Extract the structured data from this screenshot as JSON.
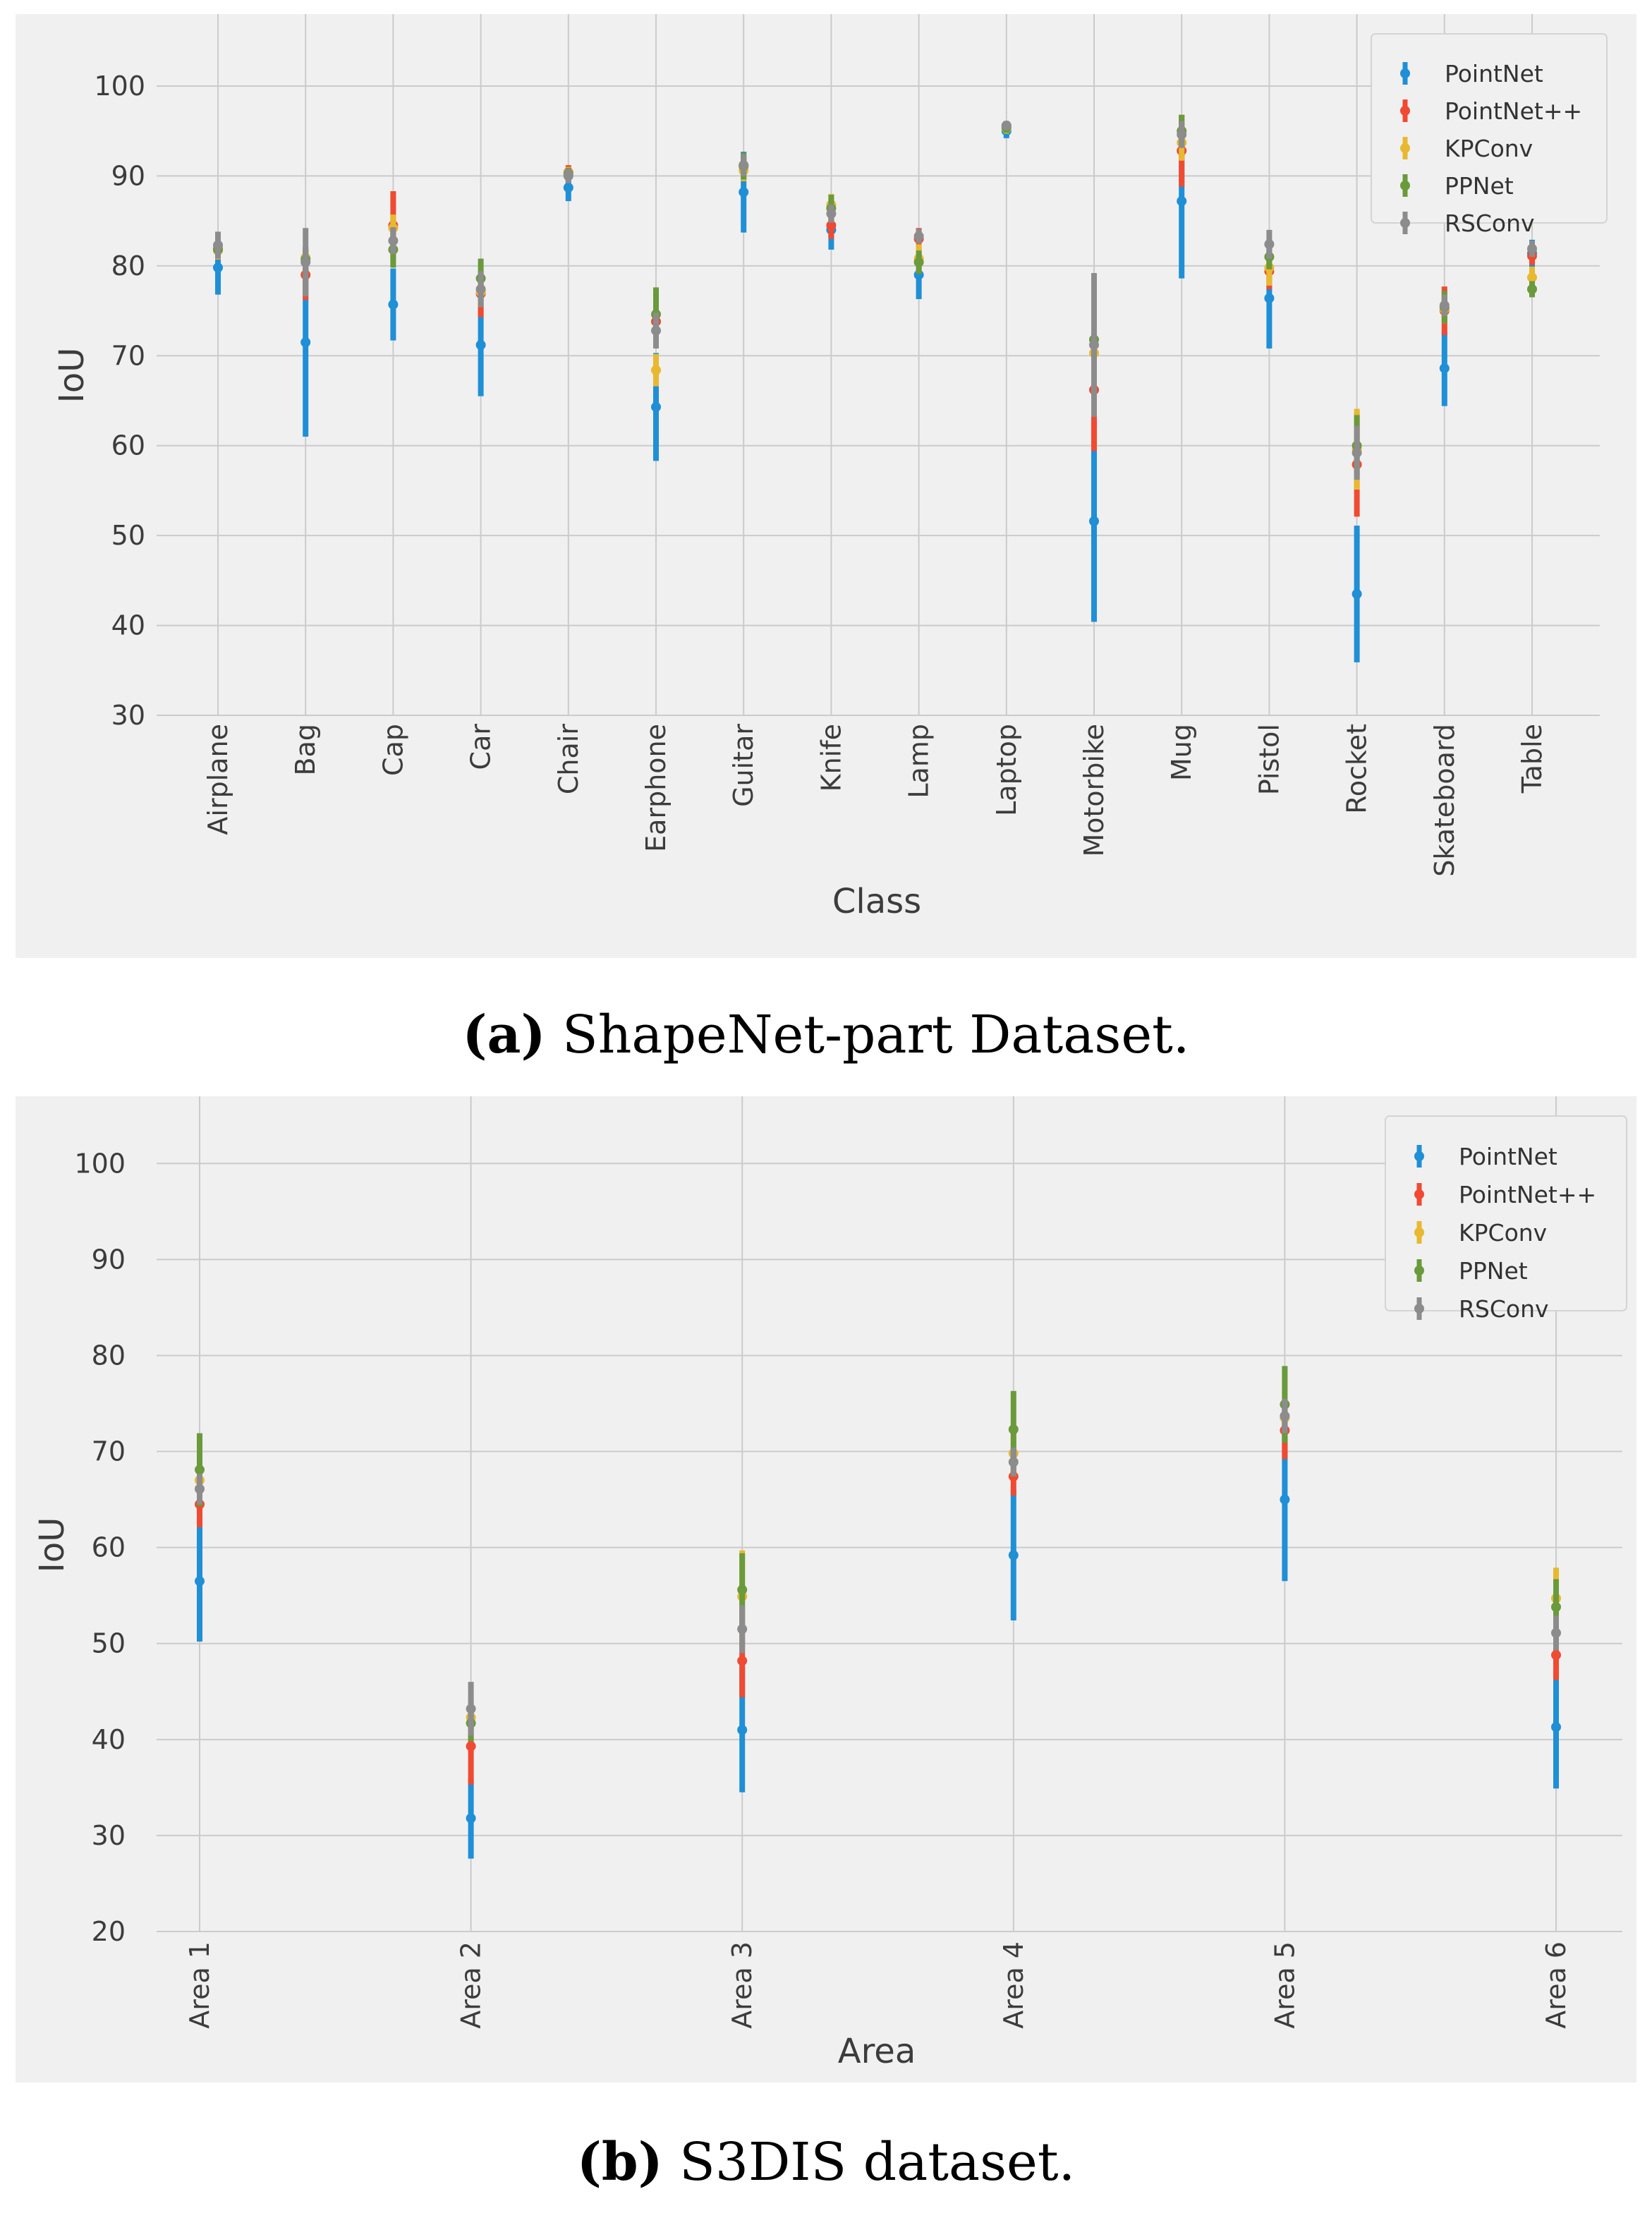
{
  "figure": {
    "captions": [
      {
        "letter": "(a)",
        "text": " ShapeNet-part Dataset."
      },
      {
        "letter": "(b)",
        "text": " S3DIS dataset."
      }
    ]
  },
  "colors": {
    "PointNet": "#1f8fd6",
    "PointNet++": "#f04a32",
    "KPConv": "#e8b830",
    "PPNet": "#6a9a3c",
    "RSConv": "#8c8c8c",
    "grid": "#cbcbcb",
    "background": "#f0f0f0"
  },
  "chart_data": [
    {
      "type": "errorbar",
      "title": "",
      "xlabel": "Class",
      "ylabel": "IoU",
      "ylim": [
        30,
        108
      ],
      "yticks": [
        30,
        40,
        50,
        60,
        70,
        80,
        90,
        100
      ],
      "legend_position": "top-right",
      "categories": [
        "Airplane",
        "Bag",
        "Cap",
        "Car",
        "Chair",
        "Earphone",
        "Guitar",
        "Knife",
        "Lamp",
        "Laptop",
        "Motorbike",
        "Mug",
        "Pistol",
        "Rocket",
        "Skateboard",
        "Table"
      ],
      "series": [
        {
          "name": "PointNet",
          "values": [
            79.8,
            71.5,
            75.7,
            71.2,
            88.7,
            64.3,
            88.2,
            84.0,
            79.0,
            95.0,
            51.6,
            87.2,
            76.4,
            43.5,
            68.6,
            81.4
          ],
          "errors": [
            3,
            10.5,
            4,
            5.7,
            1.5,
            6,
            4.5,
            2.2,
            2.7,
            0.8,
            11.2,
            8.6,
            5.6,
            7.6,
            4.2,
            1.5
          ]
        },
        {
          "name": "PointNet++",
          "values": [
            81.9,
            79.0,
            84.5,
            76.9,
            90.4,
            73.8,
            91.1,
            84.5,
            83.0,
            95.6,
            66.2,
            92.8,
            79.4,
            57.9,
            75.0,
            81.1
          ],
          "errors": [
            1.2,
            2.8,
            3.8,
            2.6,
            0.8,
            1.5,
            1.0,
            1.5,
            1.2,
            0.5,
            6.8,
            4.0,
            2.0,
            5.8,
            2.7,
            1.0
          ]
        },
        {
          "name": "KPConv",
          "values": [
            81.7,
            80.9,
            84.2,
            77.1,
            90.3,
            68.4,
            90.6,
            86.8,
            80.8,
            95.3,
            70.3,
            93.7,
            79.8,
            59.6,
            75.2,
            78.7
          ],
          "errors": [
            1.0,
            1.2,
            1.5,
            1.6,
            0.7,
            1.8,
            1.2,
            1.2,
            1.6,
            0.6,
            2.0,
            2.0,
            2.0,
            4.5,
            1.6,
            1.2
          ]
        },
        {
          "name": "PPNet",
          "values": [
            81.8,
            80.7,
            81.8,
            78.6,
            90.2,
            74.6,
            91.1,
            86.4,
            80.4,
            95.4,
            71.8,
            95.0,
            81.0,
            60.0,
            75.4,
            77.4
          ],
          "errors": [
            0.8,
            1.4,
            2.0,
            2.2,
            0.7,
            3.0,
            1.5,
            1.5,
            1.3,
            0.6,
            2.6,
            1.8,
            1.4,
            3.4,
            1.8,
            0.9
          ]
        },
        {
          "name": "RSConv",
          "values": [
            82.3,
            80.4,
            82.8,
            77.4,
            90.0,
            72.8,
            91.2,
            85.8,
            83.3,
            95.6,
            71.2,
            94.6,
            82.4,
            59.2,
            75.6,
            81.9
          ],
          "errors": [
            1.5,
            3.8,
            1.5,
            2.0,
            0.8,
            2.0,
            1.2,
            1.0,
            0.8,
            0.5,
            8.0,
            1.5,
            1.6,
            3.0,
            1.2,
            0.9
          ]
        }
      ]
    },
    {
      "type": "errorbar",
      "title": "",
      "xlabel": "Area",
      "ylabel": "IoU",
      "ylim": [
        20,
        107
      ],
      "yticks": [
        20,
        30,
        40,
        50,
        60,
        70,
        80,
        90,
        100
      ],
      "legend_position": "top-right",
      "categories": [
        "Area 1",
        "Area 2",
        "Area 3",
        "Area 4",
        "Area 5",
        "Area 6"
      ],
      "series": [
        {
          "name": "PointNet",
          "values": [
            56.5,
            31.8,
            41.0,
            59.2,
            65.0,
            41.3
          ],
          "errors": [
            6.3,
            4.2,
            6.5,
            6.8,
            8.5,
            6.4
          ]
        },
        {
          "name": "PointNet++",
          "values": [
            64.5,
            39.3,
            48.2,
            67.4,
            72.2,
            48.8
          ],
          "errors": [
            2.4,
            4.0,
            3.8,
            2.0,
            3.0,
            2.6
          ]
        },
        {
          "name": "KPConv",
          "values": [
            67.0,
            42.3,
            54.9,
            69.8,
            73.5,
            54.7
          ],
          "errors": [
            2.0,
            1.8,
            4.8,
            2.3,
            1.8,
            3.2
          ]
        },
        {
          "name": "PPNet",
          "values": [
            68.1,
            41.7,
            55.6,
            72.3,
            74.9,
            53.8
          ],
          "errors": [
            3.8,
            1.9,
            3.8,
            4.0,
            4.0,
            2.9
          ]
        },
        {
          "name": "RSConv",
          "values": [
            66.1,
            43.2,
            51.5,
            68.9,
            73.7,
            51.1
          ],
          "errors": [
            1.6,
            2.8,
            2.5,
            1.5,
            1.8,
            1.8
          ]
        }
      ]
    }
  ]
}
